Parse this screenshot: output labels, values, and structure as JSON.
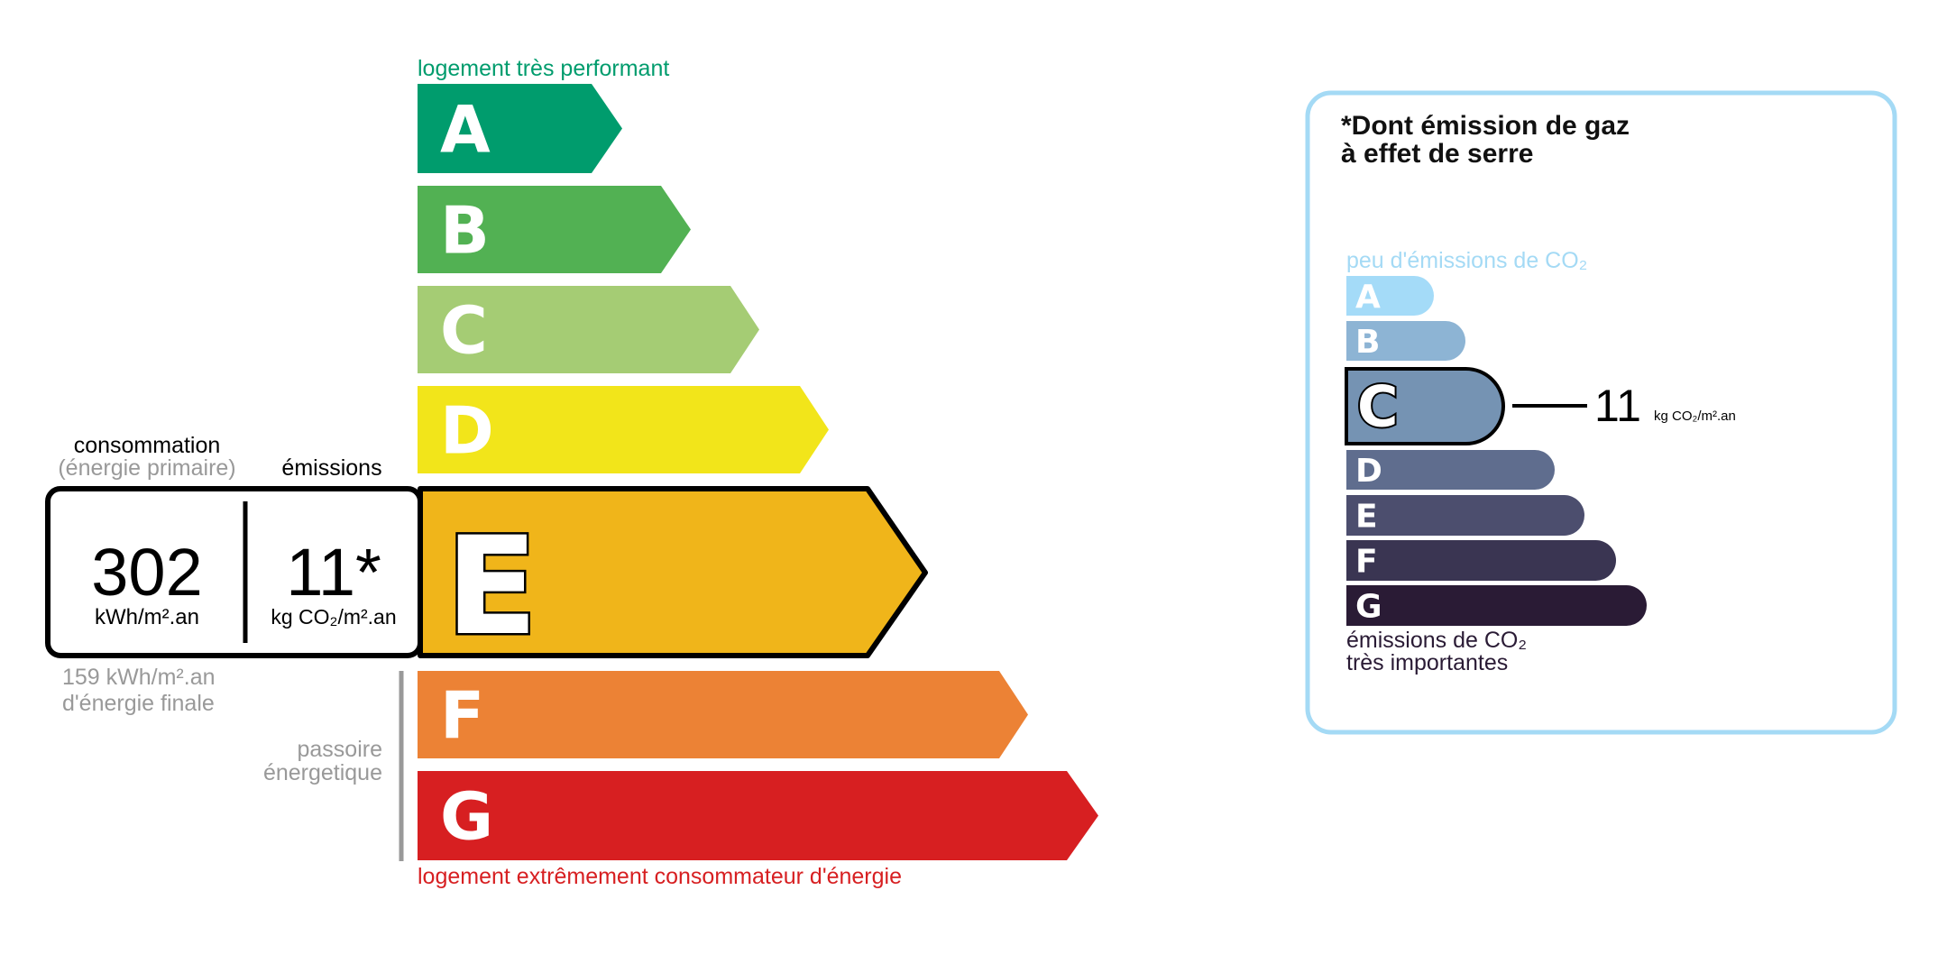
{
  "energy": {
    "top_label": "logement très performant",
    "bottom_label": "logement extrêmement consommateur d'énergie",
    "top_color": "#009c6d",
    "bottom_color": "#d7221f",
    "classes": [
      {
        "letter": "A",
        "color": "#009c6d"
      },
      {
        "letter": "B",
        "color": "#52b153"
      },
      {
        "letter": "C",
        "color": "#a5cc74"
      },
      {
        "letter": "D",
        "color": "#f2e51a"
      },
      {
        "letter": "E",
        "color": "#f0b51a"
      },
      {
        "letter": "F",
        "color": "#ec8235"
      },
      {
        "letter": "G",
        "color": "#d71f21"
      }
    ],
    "selected": "E",
    "consumption_label": "consommation",
    "consumption_sublabel": "(énergie primaire)",
    "emissions_label": "émissions",
    "consumption_value": "302",
    "consumption_unit": "kWh/m².an",
    "emissions_value": "11*",
    "emissions_unit": "kg CO₂/m².an",
    "final_energy_value": "159 kWh/m².an",
    "final_energy_label": "d'énergie finale",
    "passoire_line1": "passoire",
    "passoire_line2": "énergetique"
  },
  "ghg": {
    "title_line1": "*Dont émission de gaz",
    "title_line2": "à effet de serre",
    "top_label": "peu d'émissions de CO₂",
    "bottom_label_line1": "émissions de CO₂",
    "bottom_label_line2": "très importantes",
    "frame_color": "#a4daf5",
    "classes": [
      {
        "letter": "A",
        "color": "#a4dbf8"
      },
      {
        "letter": "B",
        "color": "#8db4d4"
      },
      {
        "letter": "C",
        "color": "#7593b3"
      },
      {
        "letter": "D",
        "color": "#5f6d8e"
      },
      {
        "letter": "E",
        "color": "#4c4e6e"
      },
      {
        "letter": "F",
        "color": "#3a3552"
      },
      {
        "letter": "G",
        "color": "#2a1b35"
      }
    ],
    "selected": "C",
    "value": "11",
    "unit": "kg CO₂/m².an"
  }
}
